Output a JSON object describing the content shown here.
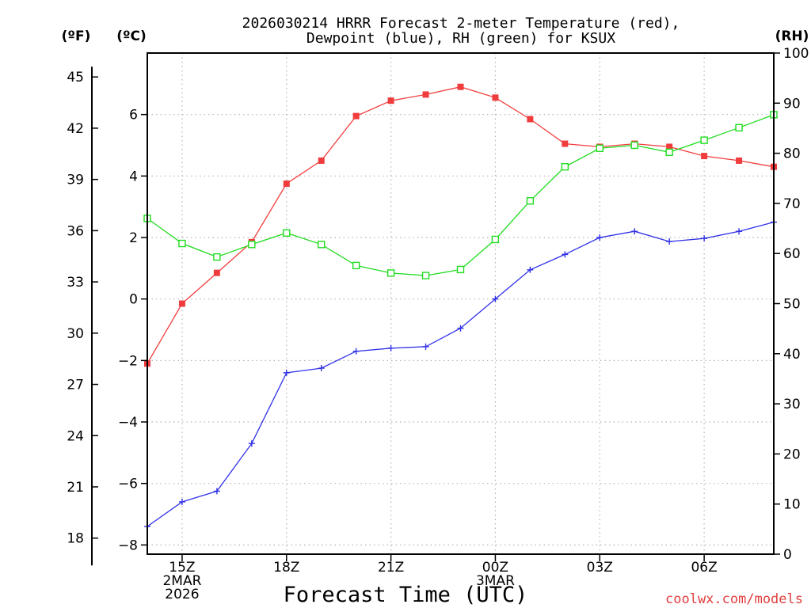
{
  "chart_data": {
    "type": "line",
    "title_line1": "2026030214 HRRR Forecast 2-meter Temperature (red),",
    "title_line2": "Dewpoint (blue), RH (green) for KSUX",
    "xlabel": "Forecast Time (UTC)",
    "credit": "coolwx.com/models",
    "axes": {
      "fahrenheit": {
        "label": "(ºF)",
        "ticks": [
          18,
          21,
          24,
          27,
          30,
          33,
          36,
          39,
          42,
          45
        ]
      },
      "celsius": {
        "label": "(ºC)",
        "ticks": [
          -8,
          -6,
          -4,
          -2,
          0,
          2,
          4,
          6
        ],
        "ylim": [
          -8.3,
          8
        ]
      },
      "rh": {
        "label": "(RH)",
        "ticks": [
          0,
          10,
          20,
          30,
          40,
          50,
          60,
          70,
          80,
          90,
          100
        ],
        "ylim": [
          0,
          100
        ]
      }
    },
    "x_hours": [
      14,
      15,
      16,
      17,
      18,
      19,
      20,
      21,
      22,
      23,
      24,
      25,
      26,
      27,
      28,
      29,
      30,
      31,
      32
    ],
    "xlim": [
      14,
      32
    ],
    "x_ticks": [
      {
        "hour": 15,
        "lines": [
          "15Z",
          "2MAR",
          "2026"
        ]
      },
      {
        "hour": 18,
        "lines": [
          "18Z"
        ]
      },
      {
        "hour": 21,
        "lines": [
          "21Z"
        ]
      },
      {
        "hour": 24,
        "lines": [
          "00Z",
          "3MAR"
        ]
      },
      {
        "hour": 27,
        "lines": [
          "03Z"
        ]
      },
      {
        "hour": 30,
        "lines": [
          "06Z"
        ]
      }
    ],
    "series": [
      {
        "name": "2-meter Temperature",
        "axis": "celsius",
        "color": "#f03c3c",
        "marker": "filled-square",
        "values": [
          -2.1,
          -0.15,
          0.85,
          1.85,
          3.75,
          4.5,
          5.95,
          6.45,
          6.65,
          6.9,
          6.55,
          5.85,
          5.05,
          4.95,
          5.05,
          4.95,
          4.65,
          4.5,
          4.3
        ]
      },
      {
        "name": "Dewpoint",
        "axis": "celsius",
        "color": "#3030e8",
        "marker": "plus",
        "values": [
          -7.4,
          -6.6,
          -6.25,
          -4.7,
          -2.4,
          -2.25,
          -1.7,
          -1.6,
          -1.55,
          -0.95,
          0.0,
          0.95,
          1.45,
          2.0,
          2.2,
          1.87,
          1.97,
          2.2,
          2.5
        ]
      },
      {
        "name": "Relative Humidity",
        "axis": "rh",
        "color": "#20dc20",
        "marker": "open-square",
        "values": [
          67,
          62,
          59.3,
          61.8,
          64.1,
          61.8,
          57.6,
          56.1,
          55.6,
          56.8,
          62.8,
          70.5,
          77.3,
          81,
          81.6,
          80.2,
          82.6,
          85.1,
          87.7
        ]
      }
    ]
  }
}
